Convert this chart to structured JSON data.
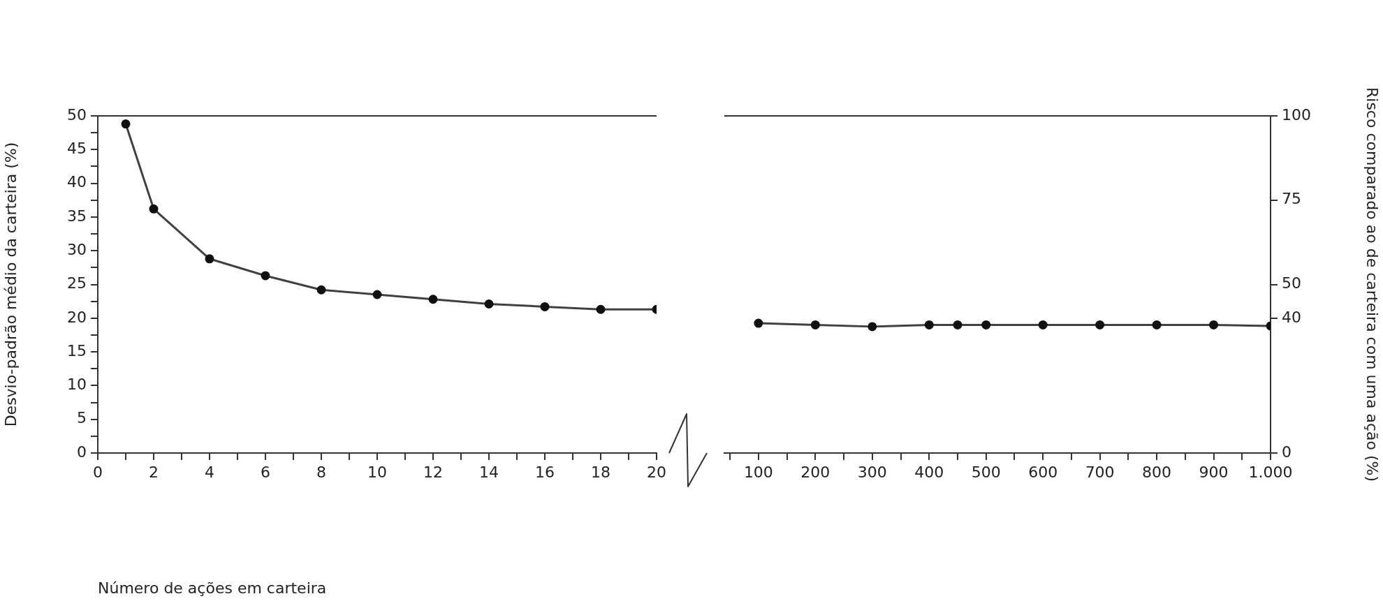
{
  "chart_data": [
    {
      "type": "line",
      "xlabel": "Número de ações em carteira",
      "ylabel": "Desvio-padrão médio da carteira (%)",
      "x": [
        1,
        2,
        4,
        6,
        8,
        10,
        12,
        14,
        16,
        18,
        20
      ],
      "series": [
        {
          "color": "#404040",
          "values": [
            48.8,
            36.2,
            28.8,
            26.3,
            24.2,
            23.5,
            22.8,
            22.1,
            21.7,
            21.3,
            21.3
          ]
        }
      ],
      "xlim": [
        0,
        20
      ],
      "xticks": [
        0,
        {
          "value": 1,
          "label": null
        },
        2,
        {
          "value": 3,
          "label": null
        },
        4,
        {
          "value": 5,
          "label": null
        },
        6,
        {
          "value": 7,
          "label": null
        },
        8,
        {
          "value": 9,
          "label": null
        },
        10,
        {
          "value": 11,
          "label": null
        },
        12,
        {
          "value": 13,
          "label": null
        },
        14,
        {
          "value": 15,
          "label": null
        },
        16,
        {
          "value": 17,
          "label": null
        },
        18,
        {
          "value": 19,
          "label": null
        },
        20
      ],
      "ylim": [
        0,
        50
      ],
      "yticks": [
        0,
        {
          "value": 2.5,
          "label": null
        },
        5,
        {
          "value": 7.5,
          "label": null
        },
        10,
        {
          "value": 12.5,
          "label": null
        },
        15,
        {
          "value": 17.5,
          "label": null
        },
        20,
        {
          "value": 22.5,
          "label": null
        },
        25,
        {
          "value": 27.5,
          "label": null
        },
        30,
        {
          "value": 32.5,
          "label": null
        },
        35,
        {
          "value": 37.5,
          "label": null
        },
        40,
        {
          "value": 42.5,
          "label": null
        },
        45,
        {
          "value": 47.5,
          "label": null
        },
        50
      ],
      "marker": "circle",
      "grid": false,
      "legend": false
    },
    {
      "type": "line",
      "y2label": "Risco comparado ao de carteira com uma ação (%)",
      "x": [
        100,
        200,
        300,
        400,
        450,
        500,
        600,
        700,
        800,
        900,
        1000
      ],
      "series": [
        {
          "color": "#404040",
          "axis": "y2",
          "values": [
            38.5,
            38,
            37.5,
            38,
            38,
            38,
            38,
            38,
            38,
            38,
            37.7
          ]
        }
      ],
      "xlim": [
        40,
        1000
      ],
      "xticks": [
        {
          "value": 50,
          "label": null
        },
        100,
        {
          "value": 150,
          "label": null
        },
        200,
        {
          "value": 250,
          "label": null
        },
        300,
        {
          "value": 350,
          "label": null
        },
        400,
        {
          "value": 450,
          "label": null
        },
        500,
        {
          "value": 550,
          "label": null
        },
        600,
        {
          "value": 650,
          "label": null
        },
        700,
        {
          "value": 750,
          "label": null
        },
        800,
        {
          "value": 850,
          "label": null
        },
        900,
        {
          "value": 950,
          "label": null
        },
        {
          "value": 1000,
          "label": "1.000"
        }
      ],
      "y2lim": [
        0,
        100
      ],
      "y2ticks": [
        0,
        40,
        50,
        75,
        100
      ],
      "marker": "circle",
      "grid": false,
      "legend": false
    }
  ]
}
